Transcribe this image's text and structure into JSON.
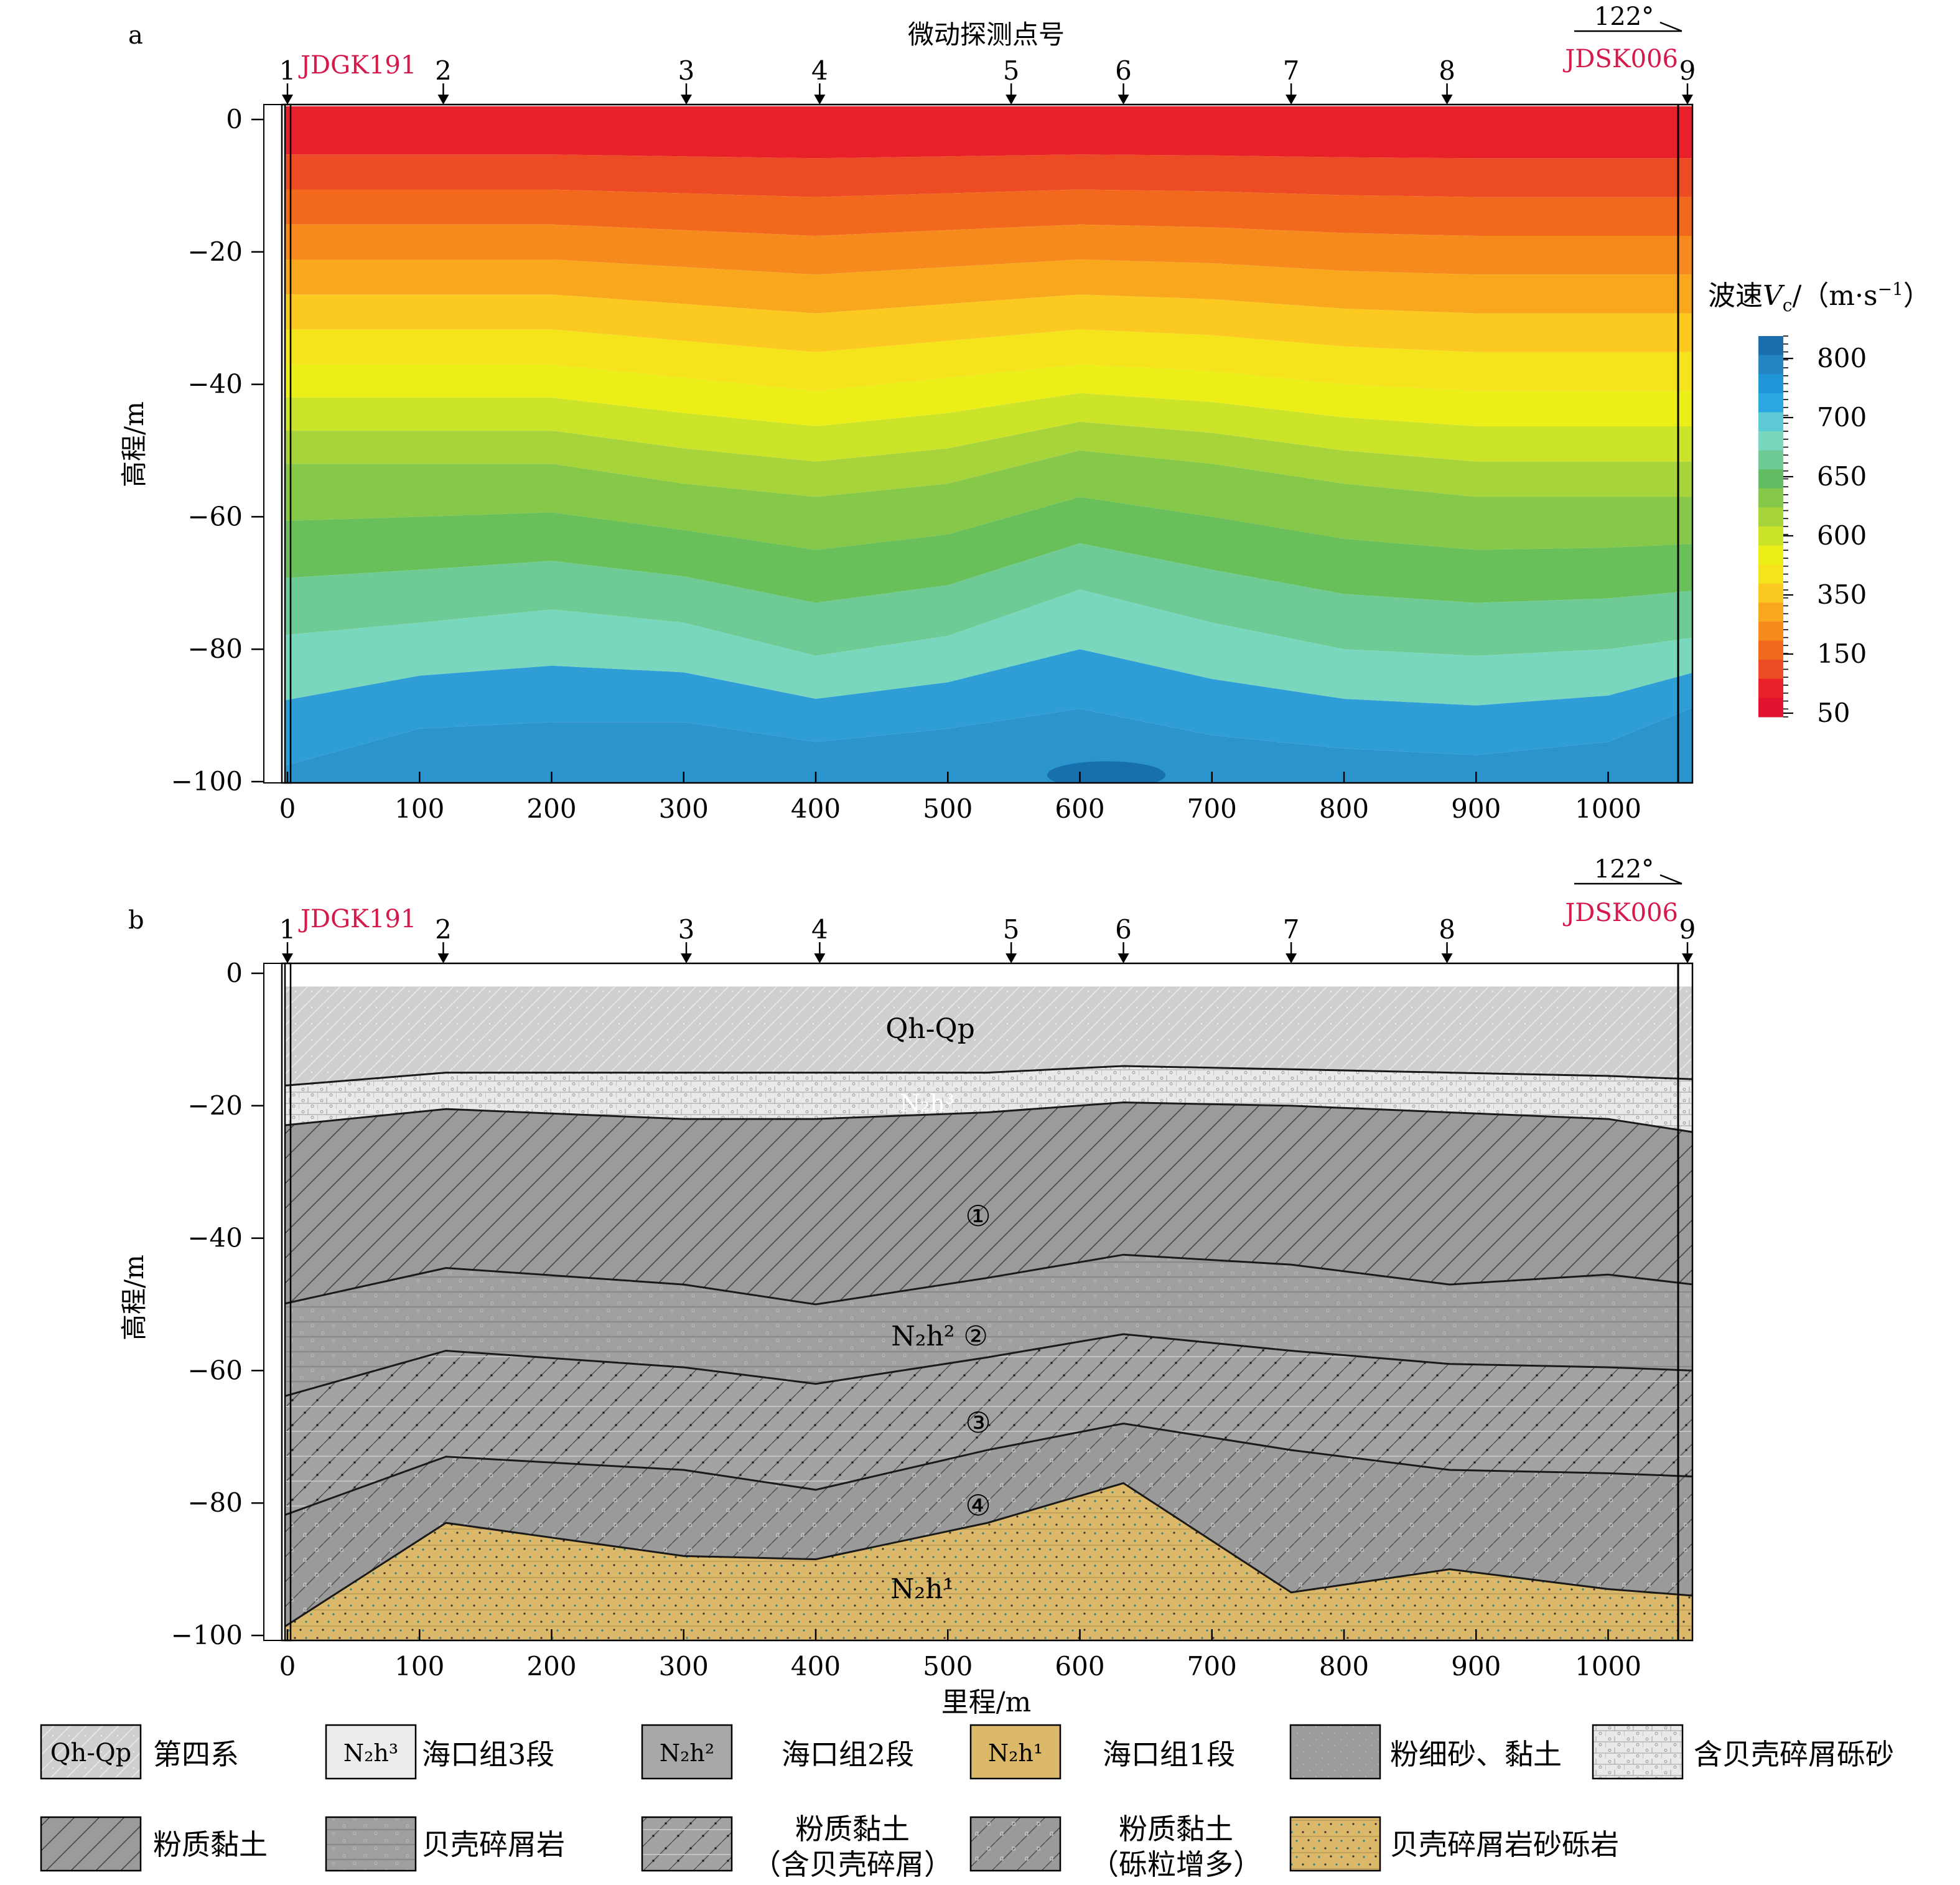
{
  "panel_a": {
    "label": "a",
    "top_title": "微动探测点号",
    "ylabel": "高程/m",
    "colorbar_title_prefix": "波速",
    "colorbar_title_symbol": "V",
    "colorbar_title_sub": "c",
    "colorbar_title_units": "/（m·s",
    "colorbar_title_sup": "−1",
    "colorbar_title_close": "）",
    "colorbar_ticks": [
      "800",
      "700",
      "650",
      "600",
      "350",
      "150",
      "50"
    ]
  },
  "panel_b": {
    "label": "b",
    "ylabel": "高程/m",
    "xlabel": "里程/m",
    "unit_labels": [
      {
        "text": "Qh-Qp"
      },
      {
        "text": "N₂h³"
      },
      {
        "text": "①"
      },
      {
        "text": "N₂h² ②"
      },
      {
        "text": "③"
      },
      {
        "text": "④"
      },
      {
        "text": "N₂h¹"
      }
    ]
  },
  "shared": {
    "boreholes": {
      "left": "JDGK191",
      "right": "JDSK006"
    },
    "direction": "122°",
    "station_points": [
      {
        "label": "1",
        "x": 0
      },
      {
        "label": "2",
        "x": 118
      },
      {
        "label": "3",
        "x": 302
      },
      {
        "label": "4",
        "x": 403
      },
      {
        "label": "5",
        "x": 548
      },
      {
        "label": "6",
        "x": 633
      },
      {
        "label": "7",
        "x": 760
      },
      {
        "label": "8",
        "x": 878
      },
      {
        "label": "9",
        "x": 1060
      }
    ],
    "x_ticks": [
      "0",
      "100",
      "200",
      "300",
      "400",
      "500",
      "600",
      "700",
      "800",
      "900",
      "1000"
    ],
    "y_ticks": [
      "0",
      "−20",
      "−40",
      "−60",
      "−80",
      "−100"
    ]
  },
  "legend": {
    "items": [
      {
        "swatch": "Qh-Qp",
        "label": "第四系"
      },
      {
        "swatch": "N₂h³",
        "label": "海口组3段"
      },
      {
        "swatch": "N₂h²",
        "label": "海口组2段"
      },
      {
        "swatch": "N₂h¹",
        "label": "海口组1段"
      },
      {
        "swatch": "",
        "label": "粉细砂、黏土"
      },
      {
        "swatch": "",
        "label": "含贝壳碎屑砾砂"
      },
      {
        "swatch": "",
        "label": "粉质黏土"
      },
      {
        "swatch": "",
        "label": "贝壳碎屑岩"
      },
      {
        "swatch": "",
        "label": "粉质黏土",
        "sub": "（含贝壳碎屑）"
      },
      {
        "swatch": "",
        "label": "粉质黏土",
        "sub": "（砾粒增多）"
      },
      {
        "swatch": "",
        "label": "贝壳碎屑岩砂砾岩"
      }
    ]
  },
  "chart_data": [
    {
      "type": "heatmap",
      "title": "微动探测点号",
      "xlabel": "",
      "ylabel": "高程/m",
      "xlim": [
        0,
        1065
      ],
      "ylim": [
        -100,
        2
      ],
      "colorbar_label": "波速Vc/（m·s−1）",
      "colorbar_ticks": [
        800,
        700,
        650,
        600,
        350,
        150,
        50
      ],
      "color_classes": [
        "#e8202a",
        "#ec4b24",
        "#f2691d",
        "#f68a1d",
        "#f9a81e",
        "#fbc920",
        "#f5e41c",
        "#ebee17",
        "#cbe42a",
        "#a7d43a",
        "#86c84a",
        "#69c05a",
        "#6fcb95",
        "#79d7bd",
        "#2f9dd6",
        "#2b94cc",
        "#1c87c0"
      ],
      "velocity_contour_depths": {
        "x": [
          0,
          100,
          200,
          300,
          400,
          500,
          600,
          700,
          800,
          900,
          1000,
          1065
        ],
        "v600": [
          -37,
          -37,
          -37,
          -39,
          -41,
          -39,
          -37,
          -38,
          -40,
          -41,
          -41,
          -41
        ],
        "v650": [
          -52,
          -52,
          -52,
          -55,
          -57,
          -55,
          -50,
          -52,
          -55,
          -57,
          -57,
          -57
        ],
        "v700": [
          -78,
          -76,
          -74,
          -76,
          -81,
          -78,
          -71,
          -76,
          -80,
          -81,
          -80,
          -78
        ],
        "v800": [
          -98,
          -92,
          -91,
          -91,
          -94,
          -92,
          -89,
          -93,
          -95,
          -96,
          -94,
          -88
        ]
      }
    },
    {
      "type": "geologic_cross_section",
      "xlabel": "里程/m",
      "ylabel": "高程/m",
      "xlim": [
        0,
        1065
      ],
      "ylim": [
        -100,
        2
      ],
      "boundaries": {
        "x": [
          0,
          120,
          300,
          400,
          530,
          633,
          760,
          880,
          1000,
          1060
        ],
        "top_surface": [
          -2,
          -2,
          -2,
          -2,
          -2,
          -2,
          -2,
          -2,
          -2,
          -2
        ],
        "base_Qh_Qp": [
          -17,
          -15,
          -15,
          -15,
          -15,
          -14,
          -14.5,
          -15,
          -15.5,
          -16
        ],
        "base_N2h3": [
          -23,
          -20.5,
          -22,
          -22,
          -21,
          -19.5,
          -20,
          -21,
          -22,
          -24
        ],
        "base_unit1": [
          -50,
          -44.5,
          -47,
          -50,
          -46,
          -42.5,
          -44,
          -47,
          -45.5,
          -47
        ],
        "base_unit2": [
          -64,
          -57,
          -59.5,
          -62,
          -58,
          -54.5,
          -57,
          -59,
          -59.5,
          -60
        ],
        "base_unit3": [
          -82,
          -73,
          -75,
          -78,
          -72,
          -68,
          -72,
          -75,
          -75.5,
          -76
        ],
        "top_N2h1": [
          -99,
          -83,
          -88,
          -88.5,
          -83,
          -77,
          -93.5,
          -90,
          -93,
          -94
        ]
      }
    }
  ]
}
